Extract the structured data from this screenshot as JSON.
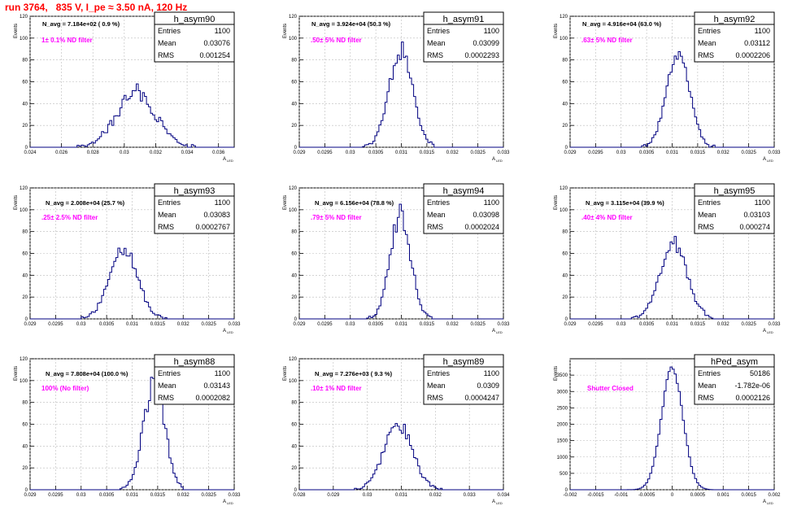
{
  "header": {
    "run_label": "run 3764,   835 V, I_pe ≈ 3.50 nA, 120 Hz"
  },
  "colors": {
    "histogram_line": "#000080",
    "label_magenta": "#ff00ff",
    "title_red": "#ff0000",
    "grid": "#bbbbbb"
  },
  "stat_labels": {
    "entries": "Entries",
    "mean": "Mean",
    "rms": "RMS"
  },
  "y_axis_label": "Events",
  "x_axis_label": "A",
  "x_axis_label_sub": "LED",
  "chart_data": [
    {
      "type": "histogram",
      "name": "h_asym90",
      "navg": "N_avg = 7.184e+02 ( 0.9 %)",
      "filter": "1± 0.1% ND filter",
      "entries": "1100",
      "mean": "0.03076",
      "rms": "0.001254",
      "xlim": [
        0.024,
        0.037
      ],
      "ylim": [
        0,
        120
      ],
      "xticks": [
        0.024,
        0.026,
        0.028,
        0.03,
        0.032,
        0.034,
        0.036
      ],
      "yticks": [
        0,
        20,
        40,
        60,
        80,
        100,
        120
      ],
      "gauss": {
        "mu": 0.03076,
        "sigma": 0.00125,
        "peak": 50,
        "noise": 0.16
      }
    },
    {
      "type": "histogram",
      "name": "h_asym91",
      "navg": "N_avg = 3.924e+04 (50.3 %)",
      "filter": ".50± 5% ND filter",
      "entries": "1100",
      "mean": "0.03099",
      "rms": "0.0002293",
      "xlim": [
        0.029,
        0.033
      ],
      "ylim": [
        0,
        120
      ],
      "xticks": [
        0.029,
        0.0295,
        0.03,
        0.0305,
        0.031,
        0.0315,
        0.032,
        0.0325,
        0.033
      ],
      "yticks": [
        0,
        20,
        40,
        60,
        80,
        100,
        120
      ],
      "gauss": {
        "mu": 0.03099,
        "sigma": 0.00023,
        "peak": 88,
        "noise": 0.1
      }
    },
    {
      "type": "histogram",
      "name": "h_asym92",
      "navg": "N_avg = 4.916e+04 (63.0 %)",
      "filter": ".63± 5% ND filter",
      "entries": "1100",
      "mean": "0.03112",
      "rms": "0.0002206",
      "xlim": [
        0.029,
        0.033
      ],
      "ylim": [
        0,
        120
      ],
      "xticks": [
        0.029,
        0.0295,
        0.03,
        0.0305,
        0.031,
        0.0315,
        0.032,
        0.0325,
        0.033
      ],
      "yticks": [
        0,
        20,
        40,
        60,
        80,
        100,
        120
      ],
      "gauss": {
        "mu": 0.03112,
        "sigma": 0.00022,
        "peak": 90,
        "noise": 0.1
      }
    },
    {
      "type": "histogram",
      "name": "h_asym93",
      "navg": "N_avg = 2.008e+04 (25.7 %)",
      "filter": ".25± 2.5% ND filter",
      "entries": "1100",
      "mean": "0.03083",
      "rms": "0.0002767",
      "xlim": [
        0.029,
        0.033
      ],
      "ylim": [
        0,
        120
      ],
      "xticks": [
        0.029,
        0.0295,
        0.03,
        0.0305,
        0.031,
        0.0315,
        0.032,
        0.0325,
        0.033
      ],
      "yticks": [
        0,
        20,
        40,
        60,
        80,
        100,
        120
      ],
      "gauss": {
        "mu": 0.03083,
        "sigma": 0.00027,
        "peak": 64,
        "noise": 0.1
      }
    },
    {
      "type": "histogram",
      "name": "h_asym94",
      "navg": "N_avg = 6.156e+04 (78.8 %)",
      "filter": ".79± 5% ND filter",
      "entries": "1100",
      "mean": "0.03098",
      "rms": "0.0002024",
      "xlim": [
        0.029,
        0.033
      ],
      "ylim": [
        0,
        120
      ],
      "xticks": [
        0.029,
        0.0295,
        0.03,
        0.0305,
        0.031,
        0.0315,
        0.032,
        0.0325,
        0.033
      ],
      "yticks": [
        0,
        20,
        40,
        60,
        80,
        100,
        120
      ],
      "gauss": {
        "mu": 0.03098,
        "sigma": 0.0002,
        "peak": 95,
        "noise": 0.1
      }
    },
    {
      "type": "histogram",
      "name": "h_asym95",
      "navg": "N_avg = 3.115e+04 (39.9 %)",
      "filter": ".40± 4% ND filter",
      "entries": "1100",
      "mean": "0.03103",
      "rms": "0.000274",
      "xlim": [
        0.029,
        0.033
      ],
      "ylim": [
        0,
        120
      ],
      "xticks": [
        0.029,
        0.0295,
        0.03,
        0.0305,
        0.031,
        0.0315,
        0.032,
        0.0325,
        0.033
      ],
      "yticks": [
        0,
        20,
        40,
        60,
        80,
        100,
        120
      ],
      "gauss": {
        "mu": 0.03103,
        "sigma": 0.00027,
        "peak": 68,
        "noise": 0.1
      }
    },
    {
      "type": "histogram",
      "name": "h_asym88",
      "navg": "N_avg = 7.808e+04 (100.0 %)",
      "filter": "100% (No filter)",
      "entries": "1100",
      "mean": "0.03143",
      "rms": "0.0002082",
      "xlim": [
        0.029,
        0.033
      ],
      "ylim": [
        0,
        120
      ],
      "xticks": [
        0.029,
        0.0295,
        0.03,
        0.0305,
        0.031,
        0.0315,
        0.032,
        0.0325,
        0.033
      ],
      "yticks": [
        0,
        20,
        40,
        60,
        80,
        100,
        120
      ],
      "gauss": {
        "mu": 0.03143,
        "sigma": 0.00021,
        "peak": 96,
        "noise": 0.1
      }
    },
    {
      "type": "histogram",
      "name": "h_asym89",
      "navg": "N_avg = 7.276e+03 ( 9.3 %)",
      "filter": ".10± 1% ND filter",
      "entries": "1100",
      "mean": "0.0309",
      "rms": "0.0004247",
      "xlim": [
        0.028,
        0.034
      ],
      "ylim": [
        0,
        120
      ],
      "xticks": [
        0.028,
        0.029,
        0.03,
        0.031,
        0.032,
        0.033,
        0.034
      ],
      "yticks": [
        0,
        20,
        40,
        60,
        80,
        100,
        120
      ],
      "gauss": {
        "mu": 0.0309,
        "sigma": 0.00042,
        "peak": 60,
        "noise": 0.12
      }
    },
    {
      "type": "histogram",
      "name": "hPed_asym",
      "navg": "",
      "filter": "Shutter Closed",
      "entries": "50186",
      "mean": "-1.782e-06",
      "rms": "0.0002126",
      "xlim": [
        -0.002,
        0.002
      ],
      "ylim": [
        0,
        4000
      ],
      "xticks": [
        -0.002,
        -0.0015,
        -0.001,
        -0.0005,
        0,
        0.0005,
        0.001,
        0.0015,
        0.002
      ],
      "yticks": [
        0,
        500,
        1000,
        1500,
        2000,
        2500,
        3000,
        3500
      ],
      "gauss": {
        "mu": 0,
        "sigma": 0.00021,
        "peak": 3700,
        "noise": 0.02
      }
    }
  ]
}
